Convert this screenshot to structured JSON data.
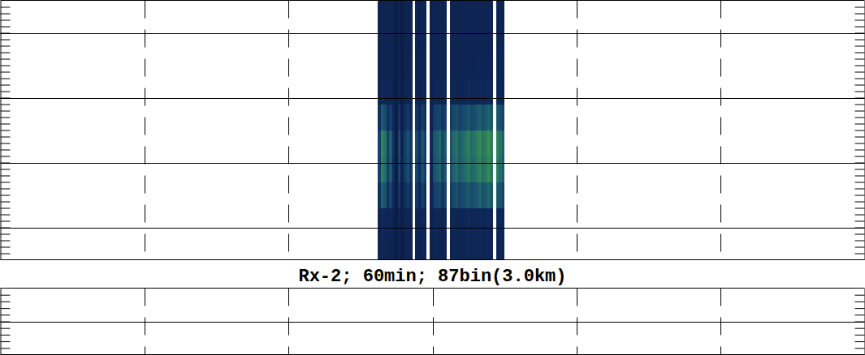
{
  "chart_data": [
    {
      "type": "heatmap",
      "title": "Rx-2; 60min; 87bin(3.0km)",
      "xlim": [
        0,
        6
      ],
      "ylim": [
        0,
        4
      ],
      "xticks": [
        1,
        2,
        3,
        4,
        5
      ],
      "yticks": [
        0.5,
        1.5,
        2.5,
        3.5
      ],
      "minor_yticks": [
        0.1,
        0.2,
        0.3,
        0.4,
        0.5,
        0.6,
        0.7,
        0.8,
        0.9,
        1,
        1.1,
        1.2,
        1.3,
        1.4,
        1.5,
        1.6,
        1.7,
        1.8,
        1.9,
        2,
        2.1,
        2.2,
        2.3,
        2.4,
        2.5,
        2.6,
        2.7,
        2.8,
        2.9,
        3,
        3.1,
        3.2,
        3.3,
        3.4,
        3.5,
        3.6,
        3.7,
        3.8,
        3.9
      ],
      "grid": true,
      "tick_labels": false,
      "zlim": [
        0,
        1
      ],
      "x_bins": [
        2.62,
        2.64,
        2.66,
        2.68,
        2.7,
        2.72,
        2.74,
        2.76,
        2.78,
        2.8,
        2.82,
        2.84,
        2.86,
        2.88,
        2.9,
        2.92,
        2.94,
        2.96,
        2.98,
        3,
        3.02,
        3.04,
        3.06,
        3.08,
        3.1,
        3.12,
        3.14,
        3.16,
        3.18,
        3.2,
        3.22,
        3.24,
        3.26,
        3.28,
        3.3,
        3.32,
        3.34,
        3.36,
        3.38,
        3.4,
        3.42,
        3.44,
        3.46,
        3.48,
        3.5
      ],
      "y_bins": [
        0,
        0.4,
        0.8,
        1.2,
        1.6,
        2,
        2.4,
        2.8,
        3.2,
        3.6,
        4
      ],
      "cells": [
        [
          0.1,
          0.14,
          0.13,
          0.11,
          0.12,
          0.1,
          0.04,
          0.12,
          0.05,
          0.11,
          0.13,
          0.12,
          null,
          0.12,
          0.1,
          0.13,
          0.12,
          null,
          0.09,
          0.12,
          0.13,
          0.12,
          0.11,
          0.13,
          null,
          0.12,
          0.13,
          0.12,
          0.11,
          0.12,
          0.13,
          0.14,
          0.12,
          0.13,
          0.12,
          0.14,
          0.12,
          0.13,
          0.14,
          0.12,
          null,
          0.13,
          0.12,
          0.1
        ],
        [
          0.11,
          0.16,
          0.14,
          0.12,
          0.13,
          0.1,
          0.04,
          0.13,
          0.05,
          0.12,
          0.14,
          0.12,
          null,
          0.13,
          0.11,
          0.14,
          0.12,
          null,
          0.1,
          0.13,
          0.14,
          0.13,
          0.12,
          0.14,
          null,
          0.13,
          0.14,
          0.13,
          0.12,
          0.13,
          0.14,
          0.15,
          0.13,
          0.14,
          0.13,
          0.15,
          0.13,
          0.14,
          0.15,
          0.13,
          null,
          0.14,
          0.13,
          0.11
        ],
        [
          0.21,
          0.46,
          0.39,
          0.21,
          0.32,
          0.14,
          0.04,
          0.25,
          0.07,
          0.21,
          0.28,
          0.18,
          null,
          0.25,
          0.14,
          0.28,
          0.21,
          null,
          0.11,
          0.28,
          0.32,
          0.35,
          0.25,
          0.32,
          null,
          0.28,
          0.35,
          0.39,
          0.32,
          0.35,
          0.39,
          0.42,
          0.35,
          0.39,
          0.42,
          0.46,
          0.39,
          0.42,
          0.49,
          0.42,
          null,
          0.42,
          0.39,
          0.32
        ],
        [
          0.29,
          0.62,
          0.52,
          0.29,
          0.43,
          0.19,
          0.05,
          0.33,
          0.1,
          0.29,
          0.38,
          0.24,
          null,
          0.33,
          0.19,
          0.38,
          0.29,
          null,
          0.14,
          0.38,
          0.43,
          0.48,
          0.33,
          0.43,
          null,
          0.38,
          0.48,
          0.52,
          0.43,
          0.48,
          0.52,
          0.57,
          0.48,
          0.52,
          0.57,
          0.62,
          0.52,
          0.57,
          0.67,
          0.57,
          null,
          0.57,
          0.52,
          0.43
        ],
        [
          0.3,
          0.65,
          0.55,
          0.3,
          0.45,
          0.2,
          0.05,
          0.35,
          0.1,
          0.3,
          0.4,
          0.25,
          null,
          0.35,
          0.2,
          0.4,
          0.3,
          null,
          0.15,
          0.4,
          0.45,
          0.5,
          0.35,
          0.45,
          null,
          0.4,
          0.5,
          0.55,
          0.45,
          0.5,
          0.55,
          0.6,
          0.5,
          0.55,
          0.6,
          0.65,
          0.55,
          0.6,
          0.7,
          0.6,
          null,
          0.6,
          0.55,
          0.45
        ],
        [
          0.2,
          0.44,
          0.37,
          0.2,
          0.3,
          0.14,
          0.04,
          0.24,
          0.07,
          0.2,
          0.27,
          0.17,
          null,
          0.24,
          0.14,
          0.27,
          0.2,
          null,
          0.1,
          0.27,
          0.31,
          0.34,
          0.24,
          0.31,
          null,
          0.27,
          0.34,
          0.38,
          0.31,
          0.34,
          0.38,
          0.41,
          0.34,
          0.38,
          0.41,
          0.44,
          0.38,
          0.41,
          0.47,
          0.41,
          null,
          0.41,
          0.38,
          0.31
        ],
        [
          0.11,
          0.15,
          0.14,
          0.12,
          0.13,
          0.1,
          0.04,
          0.13,
          0.05,
          0.12,
          0.14,
          0.12,
          null,
          0.13,
          0.1,
          0.14,
          0.12,
          null,
          0.09,
          0.13,
          0.14,
          0.13,
          0.12,
          0.14,
          null,
          0.13,
          0.14,
          0.13,
          0.12,
          0.13,
          0.14,
          0.15,
          0.13,
          0.14,
          0.13,
          0.15,
          0.13,
          0.14,
          0.15,
          0.13,
          null,
          0.14,
          0.13,
          0.1
        ],
        [
          0.1,
          0.13,
          0.12,
          0.11,
          0.12,
          0.1,
          0.04,
          0.12,
          0.05,
          0.11,
          0.12,
          0.12,
          null,
          0.12,
          0.1,
          0.12,
          0.12,
          null,
          0.09,
          0.12,
          0.12,
          0.12,
          0.11,
          0.12,
          null,
          0.12,
          0.12,
          0.12,
          0.11,
          0.12,
          0.12,
          0.13,
          0.12,
          0.12,
          0.12,
          0.13,
          0.12,
          0.12,
          0.13,
          0.12,
          null,
          0.12,
          0.12,
          0.1
        ],
        [
          0.1,
          0.12,
          0.12,
          0.1,
          0.11,
          0.09,
          0.04,
          0.11,
          0.05,
          0.1,
          0.12,
          0.11,
          null,
          0.11,
          0.09,
          0.12,
          0.11,
          null,
          0.08,
          0.11,
          0.12,
          0.11,
          0.1,
          0.12,
          null,
          0.11,
          0.12,
          0.11,
          0.1,
          0.11,
          0.12,
          0.12,
          0.11,
          0.12,
          0.11,
          0.12,
          0.11,
          0.12,
          0.12,
          0.11,
          null,
          0.12,
          0.11,
          0.09
        ],
        [
          0.09,
          0.12,
          0.11,
          0.1,
          0.11,
          0.09,
          0.04,
          0.11,
          0.05,
          0.1,
          0.11,
          0.11,
          null,
          0.11,
          0.09,
          0.11,
          0.11,
          null,
          0.08,
          0.11,
          0.11,
          0.11,
          0.1,
          0.11,
          null,
          0.11,
          0.11,
          0.11,
          0.1,
          0.11,
          0.11,
          0.12,
          0.11,
          0.11,
          0.11,
          0.12,
          0.11,
          0.11,
          0.12,
          0.11,
          null,
          0.11,
          0.11,
          0.09
        ]
      ]
    },
    {
      "type": "heatmap",
      "xlim": [
        0,
        6
      ],
      "ylim": [
        3,
        4
      ],
      "xticks": [
        1,
        2,
        3,
        4,
        5
      ],
      "yticks": [
        3.5
      ],
      "minor_yticks": [
        3.1,
        3.2,
        3.3,
        3.4,
        3.5,
        3.6,
        3.7,
        3.8,
        3.9
      ],
      "grid": true,
      "tick_labels": false
    }
  ]
}
